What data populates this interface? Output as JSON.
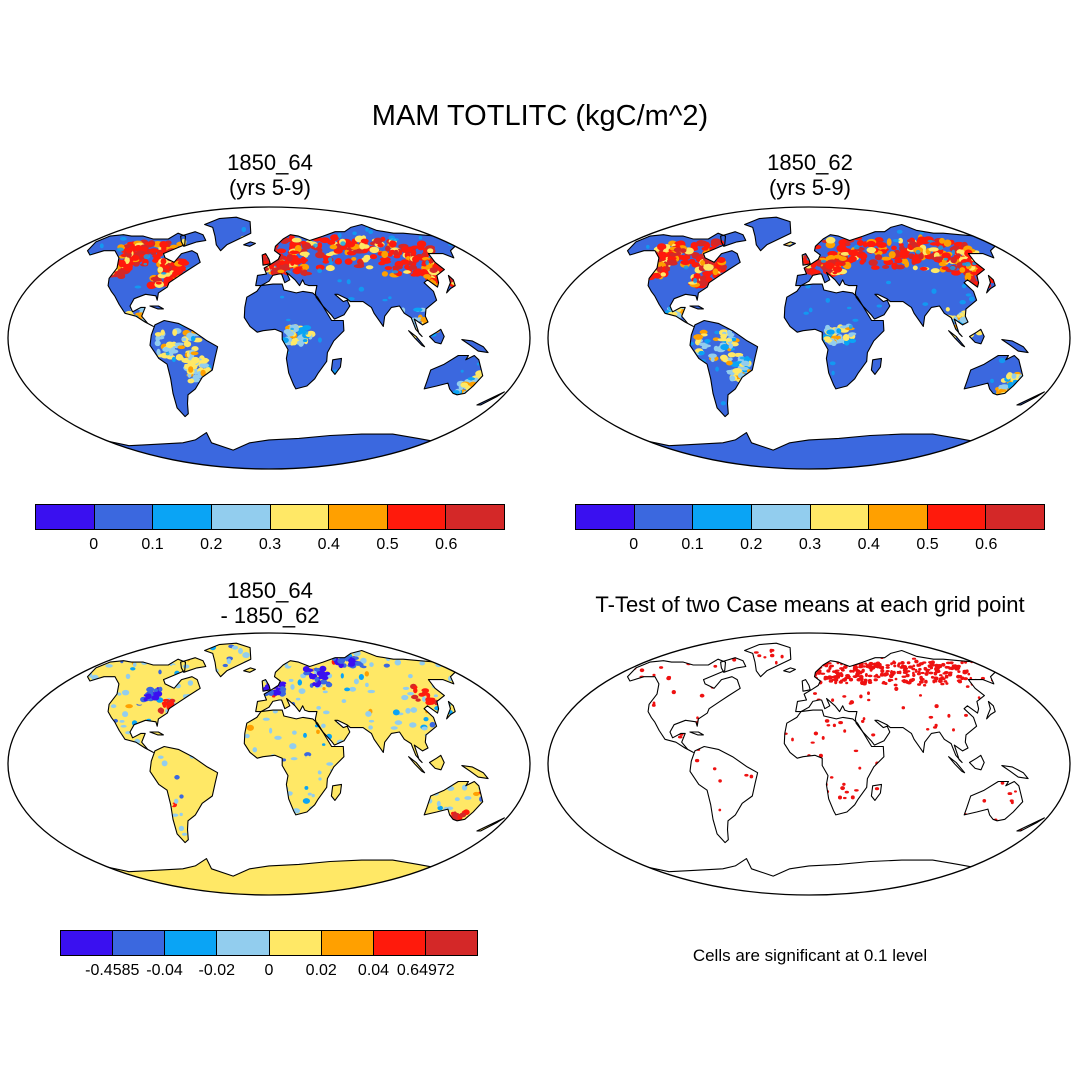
{
  "title": "MAM TOTLITC (kgC/m^2)",
  "panels": [
    {
      "title_line1": "1850_64",
      "title_line2": "(yrs 5-9)",
      "kind": "field"
    },
    {
      "title_line1": "1850_62",
      "title_line2": "(yrs 5-9)",
      "kind": "field"
    },
    {
      "title_line1": "1850_64",
      "title_line2": "- 1850_62",
      "kind": "difference"
    },
    {
      "title_line1": "T-Test of two Case means at each grid point",
      "title_line2": "",
      "kind": "significance"
    }
  ],
  "colorbars": {
    "field": {
      "colors": [
        "#3a10f0",
        "#3b68df",
        "#0aa4f5",
        "#92cdee",
        "#ffe866",
        "#ffa000",
        "#ff1a0c",
        "#d42828"
      ],
      "labels": [
        "0",
        "0.1",
        "0.2",
        "0.3",
        "0.4",
        "0.5",
        "0.6"
      ]
    },
    "difference": {
      "colors": [
        "#3a10f0",
        "#3b68df",
        "#0aa4f5",
        "#92cdee",
        "#ffe866",
        "#ffa000",
        "#ff1a0c",
        "#d42828"
      ],
      "labels": [
        "-0.4585",
        "-0.04",
        "-0.02",
        "0",
        "0.02",
        "0.04",
        "0.64972"
      ]
    }
  },
  "significance_note": "Cells are significant at 0.1 level",
  "colors": {
    "ocean": "#ffffff",
    "dominant_land_field": "#3b68df",
    "dominant_land_difference": "#ffe866",
    "significant_cell": "#ee1111"
  }
}
